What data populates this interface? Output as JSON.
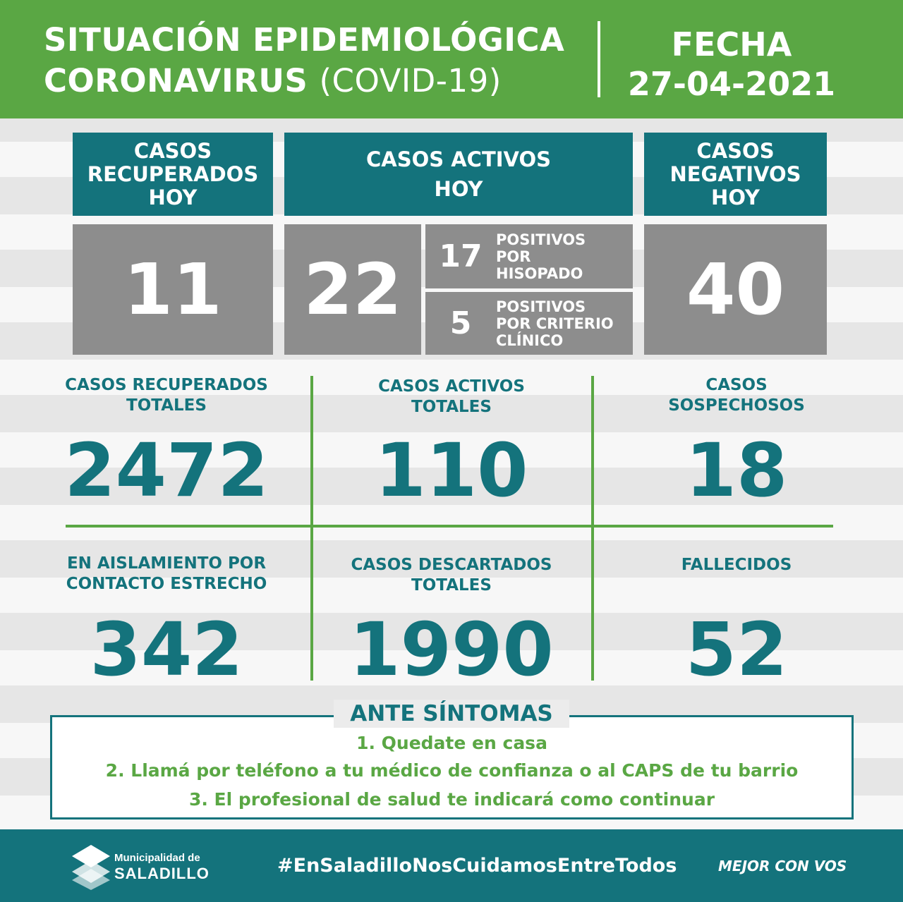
{
  "header": {
    "title_line1": "SITUACIÓN EPIDEMIOLÓGICA",
    "title_line2_bold": "CORONAVIRUS",
    "title_line2_light": "(COVID-19)",
    "fecha_label": "FECHA",
    "fecha_value": "27-04-2021"
  },
  "hoy": {
    "recuperados": {
      "l1": "CASOS",
      "l2": "RECUPERADOS",
      "l3": "HOY",
      "value": "11"
    },
    "activos": {
      "l1": "CASOS ACTIVOS",
      "l2": "HOY",
      "value": "22"
    },
    "negativos": {
      "l1": "CASOS",
      "l2": "NEGATIVOS",
      "l3": "HOY",
      "value": "40"
    },
    "hisopado": {
      "value": "17",
      "l1": "POSITIVOS",
      "l2": "POR",
      "l3": "HISOPADO"
    },
    "criterio": {
      "value": "5",
      "l1": "POSITIVOS",
      "l2": "POR CRITERIO",
      "l3": "CLÍNICO"
    }
  },
  "totales": {
    "recuperados": {
      "l1": "CASOS RECUPERADOS",
      "l2": "TOTALES",
      "value": "2472"
    },
    "activos": {
      "l1": "CASOS ACTIVOS",
      "l2": "TOTALES",
      "value": "110"
    },
    "sospechosos": {
      "l1": "CASOS",
      "l2": "SOSPECHOSOS",
      "value": "18"
    },
    "aislamiento": {
      "l1": "EN AISLAMIENTO POR",
      "l2": "CONTACTO ESTRECHO",
      "value": "342"
    },
    "descartados": {
      "l1": "CASOS DESCARTADOS",
      "l2": "TOTALES",
      "value": "1990"
    },
    "fallecidos": {
      "l1": "FALLECIDOS",
      "value": "52"
    }
  },
  "sintomas": {
    "title": "ANTE SÍNTOMAS",
    "items": [
      "1. Quedate en casa",
      "2. Llamá por teléfono a tu médico de confianza o al CAPS de tu barrio",
      "3. El profesional de salud te indicará como continuar"
    ]
  },
  "footer": {
    "logo_line1": "Municipalidad de",
    "logo_line2": "SALADILLO",
    "hashtag": "#EnSaladilloNosCuidamosEntreTodos",
    "slogan": "MEJOR CON VOS"
  },
  "colors": {
    "green": "#5aa744",
    "teal": "#14737c",
    "gray": "#8d8d8d"
  }
}
